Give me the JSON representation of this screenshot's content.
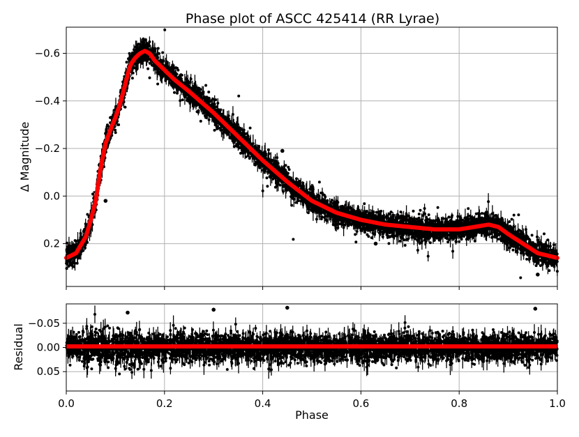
{
  "chart_data": [
    {
      "type": "scatter",
      "title": "Phase plot of ASCC 425414 (RR Lyrae)",
      "xlabel": "",
      "ylabel": "Δ Magnitude",
      "xlim": [
        0.0,
        1.0
      ],
      "ylim": [
        0.38,
        -0.71
      ],
      "y_inverted": true,
      "grid": true,
      "xticks": [
        0.0,
        0.2,
        0.4,
        0.6,
        0.8,
        1.0
      ],
      "yticks": [
        -0.6,
        -0.4,
        -0.2,
        0.0,
        0.2
      ],
      "ytick_labels": [
        "−0.6",
        "−0.4",
        "−0.2",
        "0.0",
        "0.2"
      ],
      "colors": {
        "data": "#000000",
        "model": "#ff0000",
        "grid": "#b0b0b0"
      },
      "series": [
        {
          "kind": "observations (dense black points with error bars)",
          "points_per_phase_approx": 400
        },
        {
          "kind": "fitted light-curve model (red line)",
          "x": [
            0.0,
            0.02,
            0.04,
            0.05,
            0.06,
            0.07,
            0.08,
            0.09,
            0.1,
            0.11,
            0.12,
            0.13,
            0.14,
            0.15,
            0.16,
            0.17,
            0.18,
            0.2,
            0.22,
            0.25,
            0.3,
            0.35,
            0.4,
            0.45,
            0.5,
            0.55,
            0.6,
            0.65,
            0.7,
            0.75,
            0.8,
            0.83,
            0.86,
            0.88,
            0.9,
            0.93,
            0.96,
            1.0
          ],
          "y": [
            0.26,
            0.24,
            0.17,
            0.1,
            0.02,
            -0.12,
            -0.22,
            -0.28,
            -0.33,
            -0.39,
            -0.47,
            -0.55,
            -0.58,
            -0.6,
            -0.61,
            -0.6,
            -0.57,
            -0.53,
            -0.49,
            -0.44,
            -0.35,
            -0.25,
            -0.15,
            -0.06,
            0.02,
            0.07,
            0.1,
            0.12,
            0.13,
            0.14,
            0.14,
            0.13,
            0.12,
            0.13,
            0.16,
            0.2,
            0.24,
            0.26
          ]
        }
      ]
    },
    {
      "type": "scatter",
      "title": "",
      "xlabel": "Phase",
      "ylabel": "Residual",
      "xlim": [
        0.0,
        1.0
      ],
      "ylim": [
        0.09,
        -0.09
      ],
      "y_inverted": true,
      "grid": true,
      "xticks": [
        0.0,
        0.2,
        0.4,
        0.6,
        0.8,
        1.0
      ],
      "xtick_labels": [
        "0.0",
        "0.2",
        "0.4",
        "0.6",
        "0.8",
        "1.0"
      ],
      "yticks": [
        -0.05,
        0.0,
        0.05
      ],
      "ytick_labels": [
        "−0.05",
        "0.00",
        "0.05"
      ],
      "zero_line": 0.0,
      "residual_spread_1sigma": 0.025
    }
  ]
}
